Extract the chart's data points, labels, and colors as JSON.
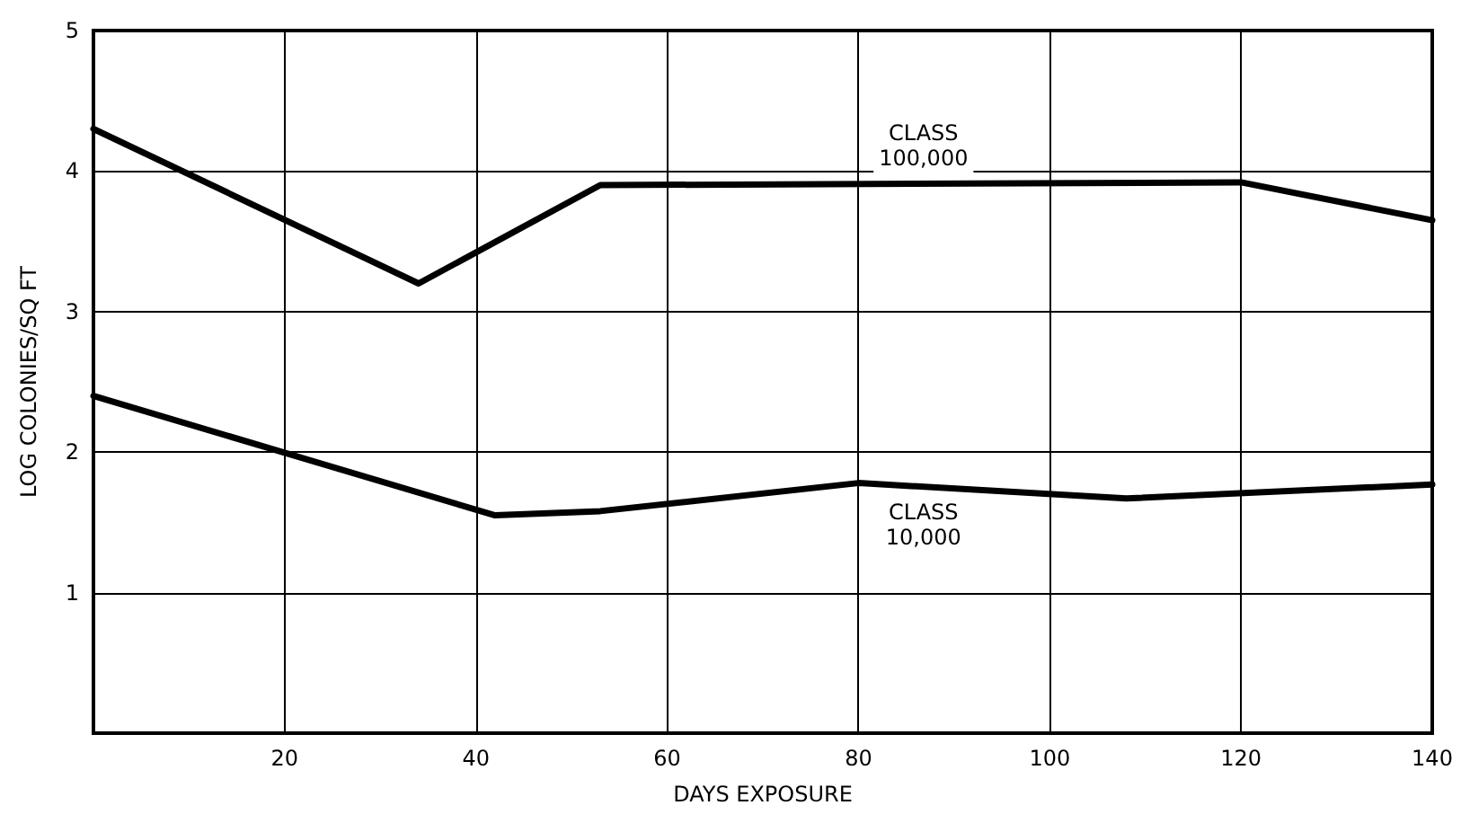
{
  "chart_data": {
    "type": "line",
    "xlabel": "DAYS EXPOSURE",
    "ylabel": "LOG COLONIES/SQ FT",
    "series": [
      {
        "name": "CLASS 100,000",
        "color": "#000000",
        "x": [
          0,
          34,
          53,
          120,
          140
        ],
        "values": [
          4.3,
          3.2,
          3.9,
          3.92,
          3.65
        ]
      },
      {
        "name": "CLASS 10,000",
        "color": "#000000",
        "x": [
          0,
          42,
          53,
          80,
          108,
          140
        ],
        "values": [
          2.4,
          1.55,
          1.58,
          1.78,
          1.67,
          1.77
        ]
      }
    ],
    "xlim": [
      0,
      140
    ],
    "xticks": [
      {
        "value": 0,
        "label": null
      },
      20,
      40,
      60,
      80,
      100,
      120,
      140
    ],
    "ylim": [
      0,
      5
    ],
    "yticks": [
      {
        "value": 0,
        "label": null
      },
      1,
      2,
      3,
      4,
      5
    ],
    "grid": true,
    "marker": "none",
    "line_style": "solid",
    "legend": false
  }
}
